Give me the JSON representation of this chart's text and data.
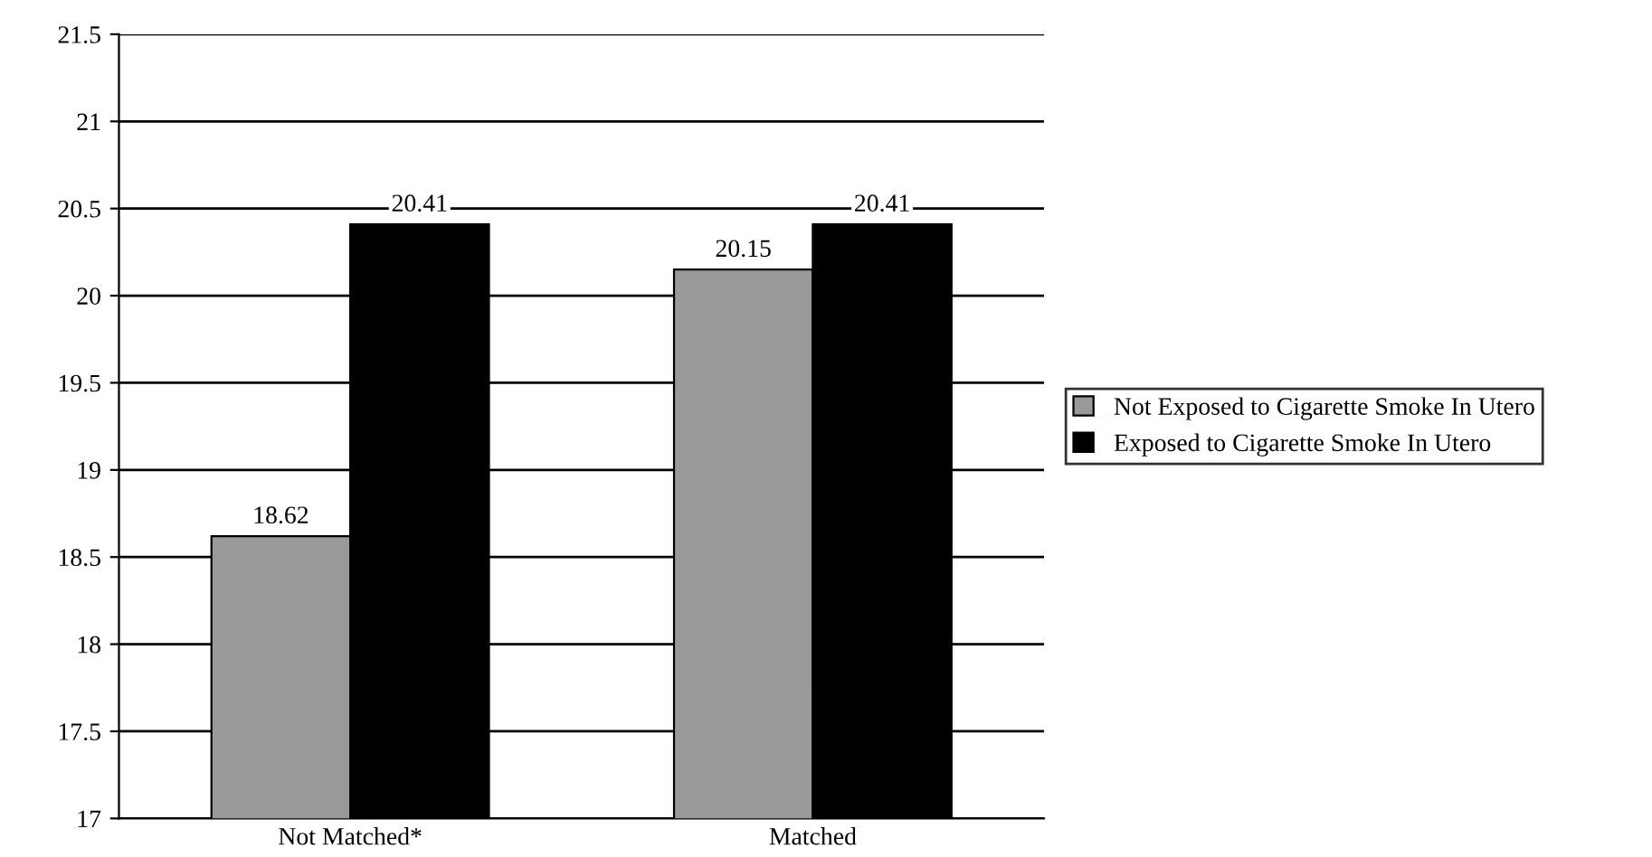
{
  "chart_data": {
    "type": "bar",
    "categories": [
      "Not Matched*",
      "Matched"
    ],
    "series": [
      {
        "name": "Not Exposed to Cigarette Smoke In Utero",
        "color": "#999999",
        "values": [
          18.62,
          20.15
        ]
      },
      {
        "name": "Exposed to Cigarette Smoke In Utero",
        "color": "#000000",
        "values": [
          20.41,
          20.41
        ]
      }
    ],
    "ylim": [
      17,
      21.5
    ],
    "yticks": [
      17,
      17.5,
      18,
      18.5,
      19,
      19.5,
      20,
      20.5,
      21,
      21.5
    ],
    "grid": "y",
    "legend": "right",
    "data_labels": true
  }
}
